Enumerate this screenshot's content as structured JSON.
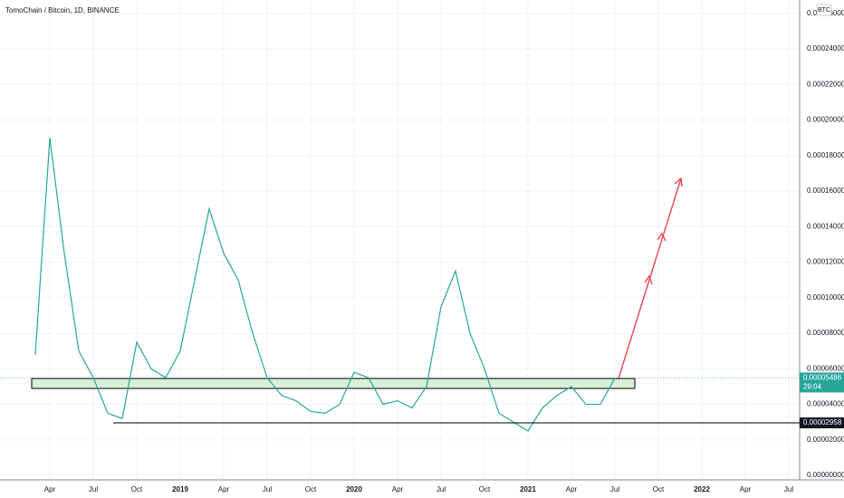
{
  "chart_data": {
    "type": "line",
    "title": "TomoChain / Bitcoin, 1D, BINANCE",
    "currency": "BTC",
    "x": [
      "2018-03",
      "2018-04",
      "2018-05",
      "2018-06",
      "2018-07",
      "2018-08",
      "2018-09",
      "2018-10",
      "2018-11",
      "2018-12",
      "2019-01",
      "2019-02",
      "2019-03",
      "2019-04",
      "2019-05",
      "2019-06",
      "2019-07",
      "2019-08",
      "2019-09",
      "2019-10",
      "2019-11",
      "2019-12",
      "2020-01",
      "2020-02",
      "2020-03",
      "2020-04",
      "2020-05",
      "2020-06",
      "2020-07",
      "2020-08",
      "2020-09",
      "2020-10",
      "2020-11",
      "2020-12",
      "2021-01",
      "2021-02",
      "2021-03",
      "2021-04",
      "2021-05",
      "2021-06",
      "2021-07"
    ],
    "series": [
      {
        "name": "TOMO/BTC",
        "color": "#26a69a",
        "values": [
          6.8e-05,
          0.00019,
          0.000125,
          7e-05,
          5.5e-05,
          3.5e-05,
          3.2e-05,
          7.5e-05,
          6e-05,
          5.5e-05,
          7e-05,
          0.00011,
          0.00015,
          0.000125,
          0.00011,
          8e-05,
          5.5e-05,
          4.5e-05,
          4.2e-05,
          3.6e-05,
          3.5e-05,
          4e-05,
          5.8e-05,
          5.5e-05,
          4e-05,
          4.2e-05,
          3.8e-05,
          5e-05,
          9.5e-05,
          0.000115,
          8e-05,
          6e-05,
          3.5e-05,
          3e-05,
          2.5e-05,
          3.8e-05,
          4.5e-05,
          5e-05,
          4e-05,
          4e-05,
          5.486e-05
        ]
      }
    ],
    "ylim": [
      -2.5e-06,
      0.0002675
    ],
    "yticks": [
      {
        "value": 0,
        "label": "0.00000000"
      },
      {
        "value": 2e-05,
        "label": "0.00002000"
      },
      {
        "value": 4e-05,
        "label": "0.00004000"
      },
      {
        "value": 6e-05,
        "label": "0.00006000"
      },
      {
        "value": 8e-05,
        "label": "0.00008000"
      },
      {
        "value": 0.0001,
        "label": "0.00010000"
      },
      {
        "value": 0.00012,
        "label": "0.00012000"
      },
      {
        "value": 0.00014,
        "label": "0.00014000"
      },
      {
        "value": 0.00016,
        "label": "0.00016000"
      },
      {
        "value": 0.00018,
        "label": "0.00018000"
      },
      {
        "value": 0.0002,
        "label": "0.00020000"
      },
      {
        "value": 0.00022,
        "label": "0.00022000"
      },
      {
        "value": 0.00024,
        "label": "0.00024000"
      },
      {
        "value": 0.00026,
        "label": "0.00026000"
      }
    ],
    "xticks": [
      {
        "value": "2018-04",
        "label": "Apr"
      },
      {
        "value": "2018-07",
        "label": "Jul"
      },
      {
        "value": "2018-10",
        "label": "Oct"
      },
      {
        "value": "2019-01",
        "label": "2019"
      },
      {
        "value": "2019-04",
        "label": "Apr"
      },
      {
        "value": "2019-07",
        "label": "Jul"
      },
      {
        "value": "2019-10",
        "label": "Oct"
      },
      {
        "value": "2020-01",
        "label": "2020"
      },
      {
        "value": "2020-04",
        "label": "Apr"
      },
      {
        "value": "2020-07",
        "label": "Jul"
      },
      {
        "value": "2020-10",
        "label": "Oct"
      },
      {
        "value": "2021-01",
        "label": "2021"
      },
      {
        "value": "2021-04",
        "label": "Apr"
      },
      {
        "value": "2021-07",
        "label": "Jul"
      },
      {
        "value": "2021-10",
        "label": "Oct"
      },
      {
        "value": "2022-01",
        "label": "2022"
      },
      {
        "value": "2022-04",
        "label": "Apr"
      },
      {
        "value": "2022-07",
        "label": "Jul"
      }
    ],
    "grid": true,
    "horizontal_line": {
      "value": 2.958e-05,
      "label": "0.00002958"
    },
    "last_price": {
      "value": 5.486e-05,
      "label": "0.00005486",
      "countdown": "29:04"
    }
  }
}
